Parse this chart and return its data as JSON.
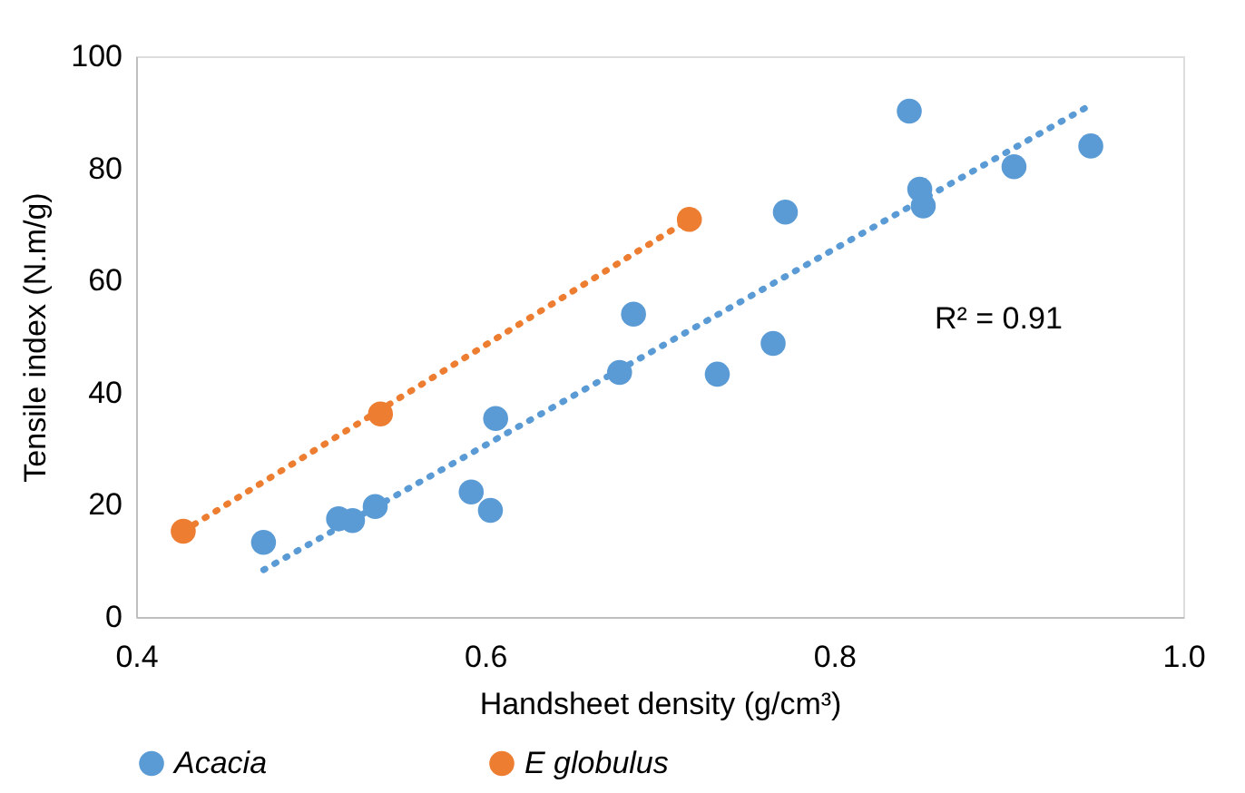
{
  "chart_data": {
    "type": "scatter",
    "xlabel": "Handsheet density (g/cm³)",
    "ylabel": "Tensile index  (N.m/g)",
    "xlim": [
      0.4,
      1.0
    ],
    "xticks": [
      {
        "value": 0.4,
        "label": "0.4"
      },
      {
        "value": 0.6,
        "label": "0.6"
      },
      {
        "value": 0.8,
        "label": "0.8"
      },
      {
        "value": 1.0,
        "label": "1.0"
      }
    ],
    "ylim": [
      0,
      100
    ],
    "yticks": [
      0,
      20,
      40,
      60,
      80,
      100
    ],
    "grid": false,
    "legend": "bottom",
    "marker": "circle",
    "series": [
      {
        "name": "Acacia",
        "color": "#5b9bd5",
        "x": [
          0.473,
          0.516,
          0.524,
          0.537,
          0.592,
          0.603,
          0.606,
          0.677,
          0.685,
          0.733,
          0.765,
          0.772,
          0.843,
          0.849,
          0.851,
          0.903,
          0.947
        ],
        "values": [
          13.3,
          17.5,
          17.2,
          19.7,
          22.3,
          19.0,
          35.4,
          43.6,
          54.0,
          43.3,
          48.8,
          72.2,
          90.2,
          76.3,
          73.3,
          80.3,
          84.0
        ]
      },
      {
        "name": "E globulus",
        "color": "#ed7d31",
        "x": [
          0.427,
          0.54,
          0.717
        ],
        "values": [
          15.3,
          36.2,
          70.9
        ]
      },
      {
        "type": "line",
        "color": "#5b9bd5",
        "line_style": "dotted",
        "marker": "none",
        "x": [
          0.473,
          0.944
        ],
        "values": [
          8.4,
          90.8
        ]
      },
      {
        "type": "line",
        "color": "#ed7d31",
        "line_style": "dotted",
        "marker": "none",
        "x": [
          0.427,
          0.717
        ],
        "values": [
          15.3,
          70.9
        ]
      }
    ],
    "annotations": [
      "R² = 0.91"
    ]
  }
}
